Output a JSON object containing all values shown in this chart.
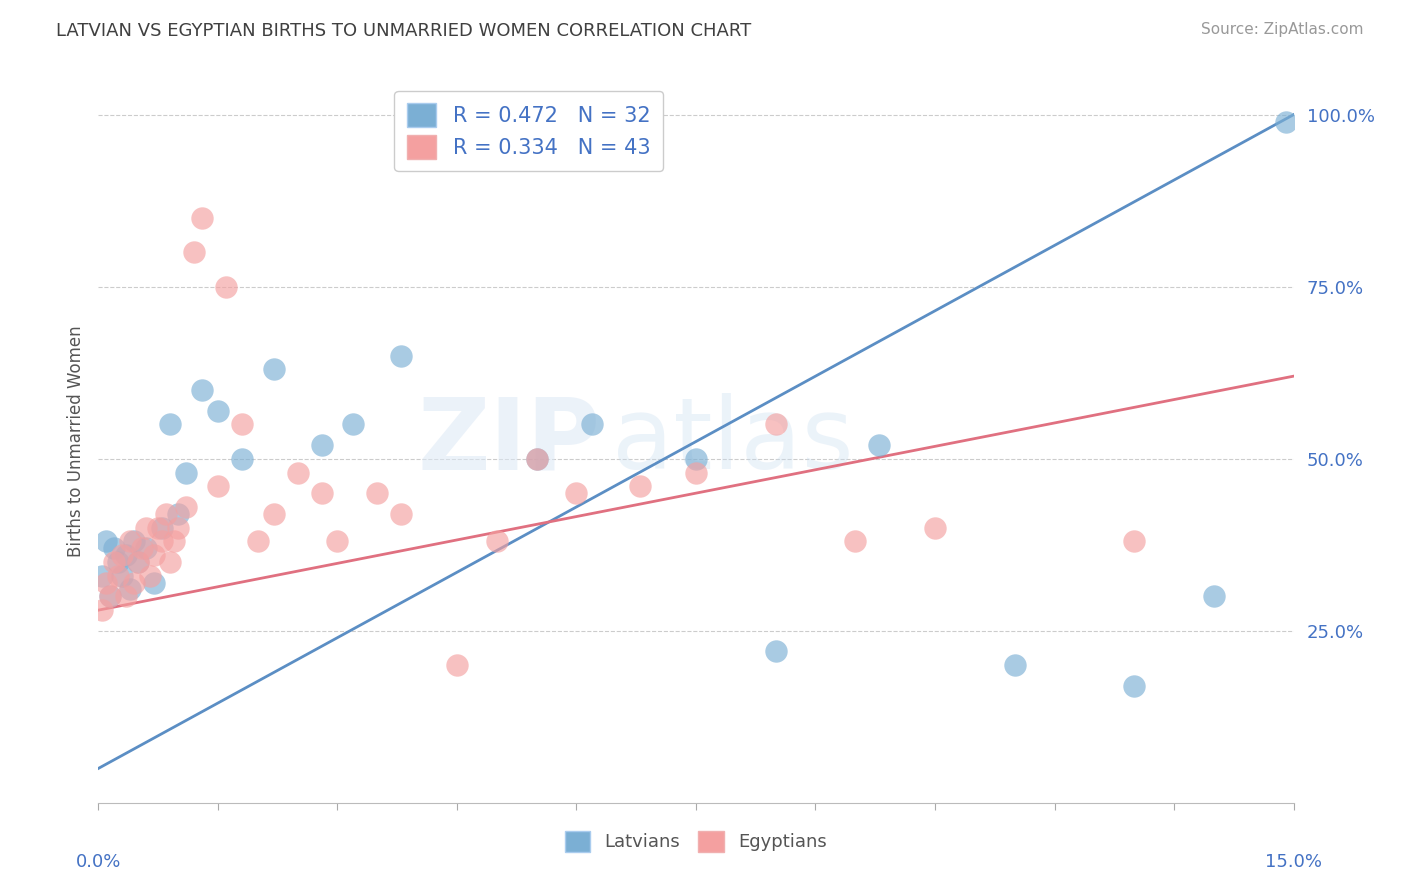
{
  "title": "LATVIAN VS EGYPTIAN BIRTHS TO UNMARRIED WOMEN CORRELATION CHART",
  "source": "Source: ZipAtlas.com",
  "ylabel": "Births to Unmarried Women",
  "xlim": [
    0,
    15
  ],
  "ylim": [
    0,
    105
  ],
  "ytick_values": [
    25,
    50,
    75,
    100
  ],
  "latvian_color": "#7bafd4",
  "egyptian_color": "#f4a0a0",
  "latvian_line_color": "#5b8ec4",
  "egyptian_line_color": "#e07080",
  "R_latvian": 0.472,
  "N_latvian": 32,
  "R_egyptian": 0.334,
  "N_egyptian": 43,
  "legend_text_color": "#4472c4",
  "title_color": "#404040",
  "background_color": "#ffffff",
  "watermark_zip": "ZIP",
  "watermark_atlas": "atlas",
  "latvian_x": [
    0.05,
    0.1,
    0.15,
    0.2,
    0.25,
    0.3,
    0.35,
    0.4,
    0.45,
    0.5,
    0.6,
    0.7,
    0.8,
    0.9,
    1.0,
    1.1,
    1.3,
    1.5,
    1.8,
    2.2,
    2.8,
    3.2,
    3.8,
    5.5,
    6.2,
    7.5,
    8.5,
    9.8,
    11.5,
    13.0,
    14.0,
    14.9
  ],
  "latvian_y": [
    33,
    38,
    30,
    37,
    35,
    33,
    36,
    31,
    38,
    35,
    37,
    32,
    40,
    55,
    42,
    48,
    60,
    57,
    50,
    63,
    52,
    55,
    65,
    50,
    55,
    50,
    22,
    52,
    20,
    17,
    30,
    99
  ],
  "egyptian_x": [
    0.05,
    0.1,
    0.15,
    0.2,
    0.25,
    0.3,
    0.35,
    0.4,
    0.45,
    0.5,
    0.55,
    0.6,
    0.65,
    0.7,
    0.75,
    0.8,
    0.85,
    0.9,
    0.95,
    1.0,
    1.1,
    1.2,
    1.3,
    1.5,
    1.6,
    1.8,
    2.0,
    2.2,
    2.5,
    2.8,
    3.0,
    3.5,
    3.8,
    4.5,
    5.0,
    5.5,
    6.0,
    6.8,
    7.5,
    8.5,
    9.5,
    10.5,
    13.0
  ],
  "egyptian_y": [
    28,
    32,
    30,
    35,
    33,
    36,
    30,
    38,
    32,
    35,
    37,
    40,
    33,
    36,
    40,
    38,
    42,
    35,
    38,
    40,
    43,
    80,
    85,
    46,
    75,
    55,
    38,
    42,
    48,
    45,
    38,
    45,
    42,
    20,
    38,
    50,
    45,
    46,
    48,
    55,
    38,
    40,
    38
  ],
  "blue_line_x0": 0,
  "blue_line_y0": 5,
  "blue_line_x1": 15,
  "blue_line_y1": 100,
  "pink_line_x0": 0,
  "pink_line_y0": 28,
  "pink_line_x1": 15,
  "pink_line_y1": 62
}
